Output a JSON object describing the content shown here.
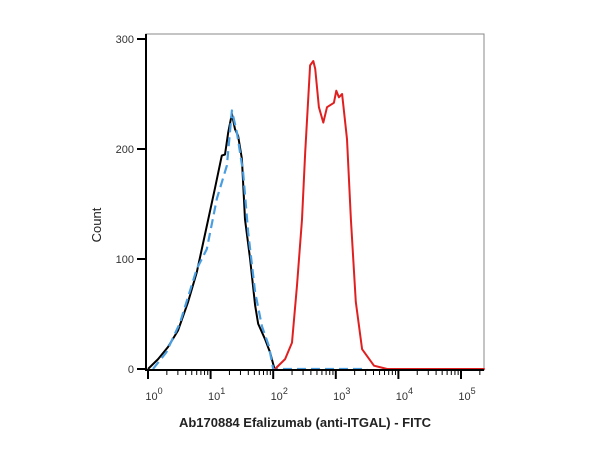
{
  "chart_data": {
    "type": "line",
    "title": "",
    "xlabel": "Ab170884 Efalizumab (anti-ITGAL) - FITC",
    "ylabel": "Count",
    "xscale": "log",
    "xlim": [
      1,
      240000
    ],
    "ylim": [
      0,
      300
    ],
    "xticks": [
      1,
      10,
      100,
      1000,
      10000,
      100000
    ],
    "xtick_labels": [
      {
        "base": "10",
        "exp": "0"
      },
      {
        "base": "10",
        "exp": "1"
      },
      {
        "base": "10",
        "exp": "2"
      },
      {
        "base": "10",
        "exp": "3"
      },
      {
        "base": "10",
        "exp": "4"
      },
      {
        "base": "10",
        "exp": "5"
      }
    ],
    "yticks": [
      0,
      100,
      200,
      300
    ],
    "ytick_labels": [
      "0",
      "100",
      "200",
      "300"
    ],
    "grid": false,
    "series": [
      {
        "color": "#000000",
        "style": "solid",
        "x": [
          1,
          1.45,
          2.09,
          3.02,
          4.37,
          6.03,
          8.71,
          11.7,
          15.1,
          17.0,
          19.1,
          21.9,
          24.5,
          27.5,
          31.6,
          35.5,
          42.7,
          51.3,
          57.5,
          74.1,
          89.1,
          105
        ],
        "y": [
          0,
          9,
          20,
          35,
          61,
          88,
          130,
          164,
          194,
          195,
          215,
          232,
          218,
          212,
          191,
          136,
          100,
          58,
          41,
          27,
          15,
          0
        ]
      },
      {
        "color": "#4a9ee0",
        "style": "dashed",
        "x": [
          1.2,
          1.95,
          3.24,
          6.03,
          8.71,
          12.6,
          18.2,
          21.9,
          26.3,
          33.1,
          39.8,
          51.3,
          66.1,
          85.1,
          100,
          3160
        ],
        "y": [
          0,
          15,
          42,
          91,
          109,
          155,
          185,
          235,
          215,
          179,
          124,
          70,
          39,
          21,
          0,
          0
        ]
      },
      {
        "color": "#e02020",
        "style": "solid",
        "x": [
          107,
          155,
          200,
          240,
          288,
          324,
          389,
          437,
          468,
          537,
          631,
          724,
          933,
          1020,
          1120,
          1260,
          1510,
          1740,
          2090,
          2630,
          4070,
          6610,
          240000
        ],
        "y": [
          0,
          9,
          24,
          76,
          136,
          197,
          276,
          280,
          273,
          238,
          224,
          238,
          242,
          253,
          247,
          250,
          209,
          136,
          61,
          18,
          3,
          0,
          0
        ]
      }
    ]
  }
}
